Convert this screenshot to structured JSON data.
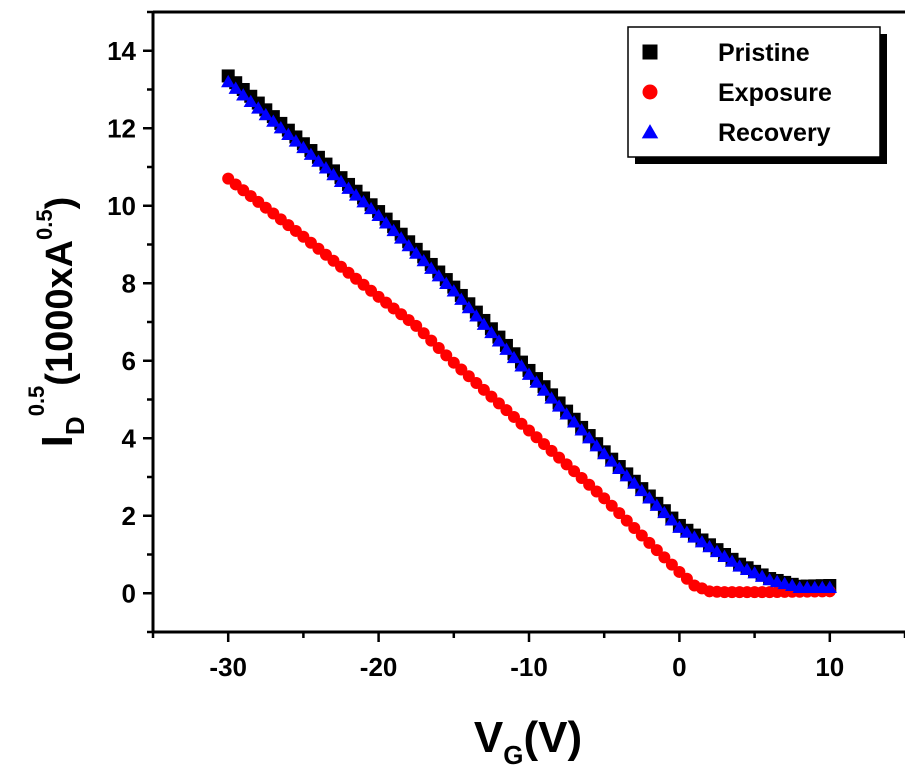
{
  "chart_data": {
    "type": "scatter",
    "xlabel": {
      "main": "V",
      "sub": "G",
      "suffix": "(V)"
    },
    "ylabel": {
      "main": "I",
      "sub": "D",
      "sup": "0.5",
      "mid": "(1000xA",
      "sup2": "0.5",
      "end": ")"
    },
    "xlim": [
      -35,
      15
    ],
    "ylim": [
      -1,
      15
    ],
    "xticks": [
      -30,
      -20,
      -10,
      0,
      10
    ],
    "yticks": [
      0,
      2,
      4,
      6,
      8,
      10,
      12,
      14
    ],
    "legend_position": "top-right",
    "series": [
      {
        "name": "Pristine",
        "marker": "square",
        "color": "#000000",
        "points": [
          [
            -30,
            13.35
          ],
          [
            -25,
            11.6
          ],
          [
            -20,
            9.85
          ],
          [
            -15,
            7.9
          ],
          [
            -10,
            5.75
          ],
          [
            -5,
            3.65
          ],
          [
            0,
            1.75
          ],
          [
            2,
            1.25
          ],
          [
            4,
            0.75
          ],
          [
            6,
            0.38
          ],
          [
            8,
            0.18
          ],
          [
            10,
            0.2
          ]
        ]
      },
      {
        "name": "Exposure",
        "marker": "circle",
        "color": "#ff0000",
        "points": [
          [
            -30,
            10.7
          ],
          [
            -25,
            9.2
          ],
          [
            -20,
            7.65
          ],
          [
            -17.5,
            6.9
          ],
          [
            -15,
            5.95
          ],
          [
            -10,
            4.2
          ],
          [
            -5,
            2.45
          ],
          [
            -2,
            1.3
          ],
          [
            0,
            0.55
          ],
          [
            1,
            0.2
          ],
          [
            2,
            0.05
          ],
          [
            3,
            0.03
          ],
          [
            6,
            0.03
          ],
          [
            10,
            0.05
          ]
        ]
      },
      {
        "name": "Recovery",
        "marker": "triangle",
        "color": "#0000ff",
        "points": [
          [
            -30,
            13.2
          ],
          [
            -25,
            11.5
          ],
          [
            -20,
            9.75
          ],
          [
            -15,
            7.8
          ],
          [
            -10,
            5.65
          ],
          [
            -5,
            3.6
          ],
          [
            0,
            1.7
          ],
          [
            2,
            1.2
          ],
          [
            4,
            0.7
          ],
          [
            6,
            0.35
          ],
          [
            8,
            0.15
          ],
          [
            10,
            0.15
          ]
        ]
      }
    ]
  }
}
